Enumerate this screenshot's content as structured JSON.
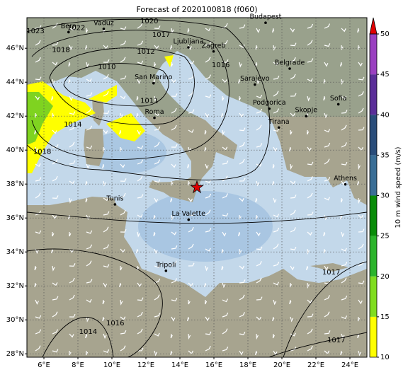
{
  "map": {
    "title": "Forecast of 2020100818 (f060)",
    "lon_lim": [
      5,
      25
    ],
    "lat_lim": [
      27.8,
      47.8
    ],
    "lon_ticks": [
      {
        "value": 6,
        "label": "6°E"
      },
      {
        "value": 8,
        "label": "8°E"
      },
      {
        "value": 10,
        "label": "10°E"
      },
      {
        "value": 12,
        "label": "12°E"
      },
      {
        "value": 14,
        "label": "14°E"
      },
      {
        "value": 16,
        "label": "16°E"
      },
      {
        "value": 18,
        "label": "18°E"
      },
      {
        "value": 20,
        "label": "20°E"
      },
      {
        "value": 22,
        "label": "22°E"
      },
      {
        "value": 24,
        "label": "24°E"
      }
    ],
    "lat_ticks": [
      {
        "value": 28,
        "label": "28°N"
      },
      {
        "value": 30,
        "label": "30°N"
      },
      {
        "value": 32,
        "label": "32°N"
      },
      {
        "value": 34,
        "label": "34°N"
      },
      {
        "value": 36,
        "label": "36°N"
      },
      {
        "value": 38,
        "label": "38°N"
      },
      {
        "value": 40,
        "label": "40°N"
      },
      {
        "value": 42,
        "label": "42°N"
      },
      {
        "value": 44,
        "label": "44°N"
      },
      {
        "value": 46,
        "label": "46°N"
      }
    ],
    "cities": [
      {
        "name": "Bern",
        "lon": 7.45,
        "lat": 46.95
      },
      {
        "name": "Vaduz",
        "lon": 9.52,
        "lat": 47.14
      },
      {
        "name": "Budapest",
        "lon": 19.04,
        "lat": 47.5
      },
      {
        "name": "Ljubljana",
        "lon": 14.5,
        "lat": 46.05
      },
      {
        "name": "Zagreb",
        "lon": 15.98,
        "lat": 45.81
      },
      {
        "name": "San Marino",
        "lon": 12.45,
        "lat": 43.94
      },
      {
        "name": "Belgrade",
        "lon": 20.46,
        "lat": 44.8
      },
      {
        "name": "Sarajevo",
        "lon": 18.41,
        "lat": 43.86
      },
      {
        "name": "Roma",
        "lon": 12.5,
        "lat": 41.9
      },
      {
        "name": "Podgorica",
        "lon": 19.26,
        "lat": 42.44
      },
      {
        "name": "Skopje",
        "lon": 21.43,
        "lat": 42.0
      },
      {
        "name": "Sofia",
        "lon": 23.32,
        "lat": 42.7
      },
      {
        "name": "Tirana",
        "lon": 19.82,
        "lat": 41.33
      },
      {
        "name": "Athens",
        "lon": 23.73,
        "lat": 37.98
      },
      {
        "name": "Tunis",
        "lon": 10.18,
        "lat": 36.8
      },
      {
        "name": "La Valette",
        "lon": 14.51,
        "lat": 35.9
      },
      {
        "name": "Tripoli",
        "lon": 13.18,
        "lat": 32.89
      }
    ],
    "marker": {
      "lon": 15.0,
      "lat": 37.8,
      "color": "#e00000"
    },
    "isobars": [
      {
        "value": 1023,
        "lon": 5.5,
        "lat": 47.0
      },
      {
        "value": 1022,
        "lon": 7.9,
        "lat": 47.2
      },
      {
        "value": 1020,
        "lon": 12.2,
        "lat": 47.6
      },
      {
        "value": 1017,
        "lon": 12.9,
        "lat": 46.8
      },
      {
        "value": 1018,
        "lon": 7.0,
        "lat": 45.9
      },
      {
        "value": 1012,
        "lon": 12.0,
        "lat": 45.8
      },
      {
        "value": 1010,
        "lon": 9.7,
        "lat": 44.9
      },
      {
        "value": 1016,
        "lon": 16.4,
        "lat": 45.0
      },
      {
        "value": 1011,
        "lon": 12.2,
        "lat": 42.9
      },
      {
        "value": 1014,
        "lon": 7.7,
        "lat": 41.5
      },
      {
        "value": 1018,
        "lon": 5.9,
        "lat": 39.9
      },
      {
        "value": 1016,
        "lon": 10.2,
        "lat": 29.8
      },
      {
        "value": 1014,
        "lon": 8.6,
        "lat": 29.3
      },
      {
        "value": 1017,
        "lon": 22.9,
        "lat": 32.8
      },
      {
        "value": 1017,
        "lon": 23.2,
        "lat": 28.8
      }
    ],
    "colorbar": {
      "label": "10 m wind speed (m/s)",
      "ticks": [
        10,
        15,
        20,
        25,
        30,
        35,
        40,
        45,
        50
      ],
      "colors": [
        "#ffff00",
        "#80dd20",
        "#2cb42c",
        "#0a8c0a",
        "#3a6e96",
        "#2a4d7a",
        "#5a2e98",
        "#9a40c0"
      ],
      "extend_color": "#e00000"
    }
  }
}
